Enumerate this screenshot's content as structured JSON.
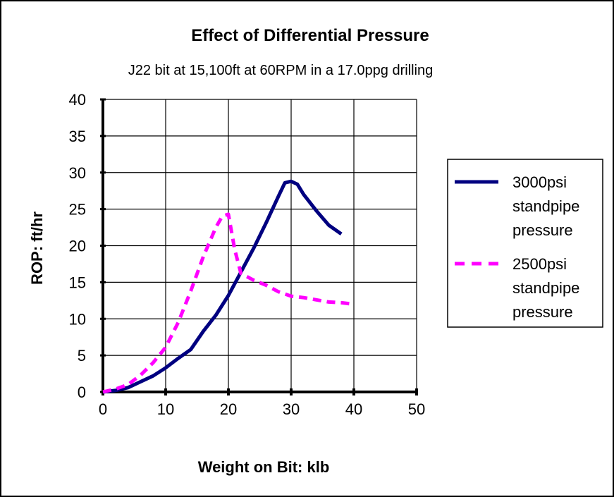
{
  "chart_data": {
    "type": "line",
    "title": "Effect of Differential Pressure",
    "subtitle": "J22 bit at 15,100ft at 60RPM in a 17.0ppg drilling",
    "xlabel": "Weight on Bit: klb",
    "ylabel": "ROP: ft/hr",
    "xlim": [
      0,
      50
    ],
    "ylim": [
      0,
      40
    ],
    "xticks": [
      0,
      10,
      20,
      30,
      40,
      50
    ],
    "yticks": [
      0,
      5,
      10,
      15,
      20,
      25,
      30,
      35,
      40
    ],
    "grid": true,
    "legend_position": "right",
    "series": [
      {
        "name": "3000psi standpipe pressure",
        "color": "#000080",
        "style": "solid",
        "x": [
          0,
          2,
          4,
          6,
          8,
          10,
          12,
          14,
          16,
          18,
          20,
          22,
          24,
          26,
          28,
          29,
          30,
          31,
          32,
          34,
          36,
          38
        ],
        "y": [
          0,
          0.2,
          0.6,
          1.4,
          2.2,
          3.3,
          4.6,
          5.8,
          8.3,
          10.5,
          13.2,
          16.4,
          19.6,
          23.1,
          26.8,
          28.6,
          28.8,
          28.4,
          27.0,
          24.8,
          22.8,
          21.6
        ]
      },
      {
        "name": "2500psi standpipe pressure",
        "color": "#FF00FF",
        "style": "dashed",
        "x": [
          0,
          2,
          4,
          6,
          8,
          10,
          12,
          14,
          16,
          18,
          19,
          20,
          21,
          22,
          24,
          26,
          28,
          30,
          32,
          34,
          36,
          38,
          40
        ],
        "y": [
          0,
          0.4,
          1.0,
          2.3,
          4.0,
          6.1,
          9.5,
          13.8,
          18.5,
          22.5,
          24.0,
          24.3,
          19.5,
          16.2,
          15.3,
          14.6,
          13.7,
          13.1,
          12.9,
          12.6,
          12.3,
          12.2,
          12.0
        ]
      }
    ]
  }
}
